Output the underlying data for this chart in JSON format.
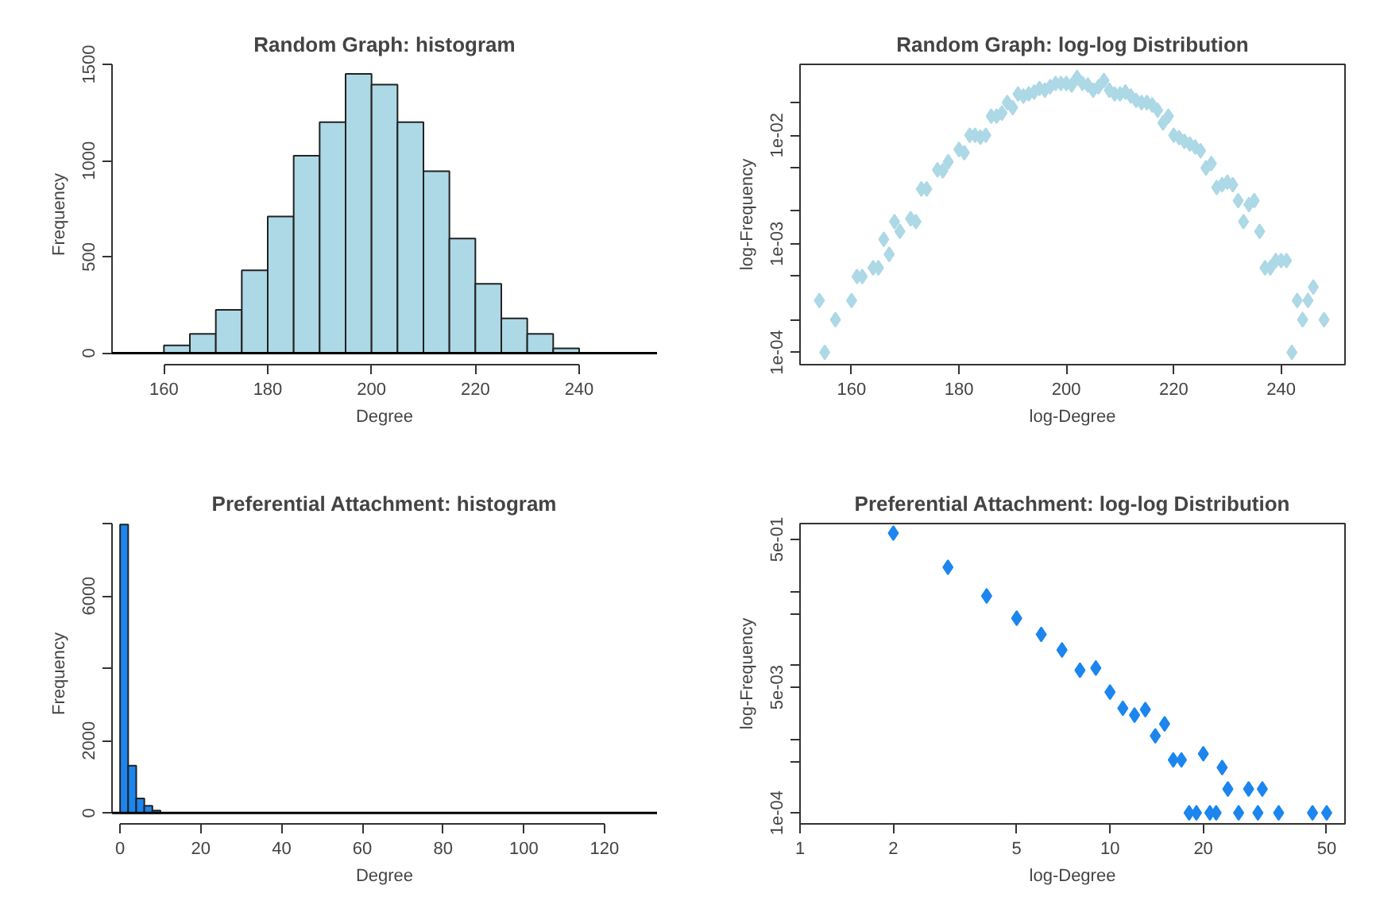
{
  "chart_data": [
    {
      "type": "histogram",
      "title": "Random Graph: histogram",
      "xlabel": "Degree",
      "ylabel": "Frequency",
      "color": "#add8e6",
      "bins": [
        160,
        165,
        170,
        175,
        180,
        185,
        190,
        195,
        200,
        205,
        210,
        215,
        220,
        225,
        230,
        235,
        240
      ],
      "values": [
        40,
        100,
        225,
        430,
        710,
        1025,
        1200,
        1450,
        1395,
        1200,
        945,
        595,
        360,
        180,
        100,
        25
      ],
      "xlim": [
        150,
        255
      ],
      "ylim": [
        -60,
        1500
      ],
      "xticks": [
        160,
        180,
        200,
        220,
        240
      ],
      "yticks": [
        0,
        500,
        1000,
        1500
      ],
      "ref_lines": [
        {
          "axis": "y",
          "value": 0,
          "color": "#000000"
        }
      ],
      "grid": false
    },
    {
      "type": "scatter",
      "title": "Random Graph: log-log Distribution",
      "xlabel": "log-Degree",
      "ylabel": "log-Frequency",
      "color": "#add8e6",
      "marker": "diamond",
      "log": "y",
      "x": [
        154,
        155,
        157,
        160,
        161,
        162,
        164,
        165,
        166,
        167,
        168,
        169,
        171,
        172,
        173,
        174,
        176,
        177,
        178,
        180,
        181,
        182,
        183,
        184,
        185,
        186,
        187,
        188,
        189,
        190,
        191,
        192,
        193,
        194,
        195,
        196,
        197,
        198,
        199,
        200,
        201,
        202,
        203,
        204,
        205,
        206,
        207,
        208,
        209,
        210,
        211,
        212,
        213,
        214,
        215,
        216,
        217,
        218,
        219,
        220,
        221,
        222,
        223,
        224,
        225,
        226,
        227,
        228,
        229,
        230,
        231,
        232,
        233,
        234,
        235,
        236,
        237,
        238,
        239,
        240,
        241,
        242,
        243,
        244,
        245,
        246,
        248
      ],
      "values": [
        0.0003,
        0.0001,
        0.0002,
        0.0003,
        0.0005,
        0.0005,
        0.0006,
        0.0006,
        0.0011,
        0.0008,
        0.0016,
        0.0013,
        0.0017,
        0.0016,
        0.0032,
        0.0032,
        0.0048,
        0.0047,
        0.0057,
        0.0074,
        0.0069,
        0.01,
        0.01,
        0.0096,
        0.01,
        0.015,
        0.015,
        0.016,
        0.02,
        0.018,
        0.024,
        0.023,
        0.024,
        0.025,
        0.027,
        0.026,
        0.028,
        0.03,
        0.03,
        0.03,
        0.029,
        0.034,
        0.03,
        0.029,
        0.026,
        0.028,
        0.032,
        0.026,
        0.024,
        0.024,
        0.025,
        0.023,
        0.021,
        0.02,
        0.02,
        0.019,
        0.017,
        0.013,
        0.015,
        0.01,
        0.0095,
        0.0088,
        0.0083,
        0.0078,
        0.0072,
        0.005,
        0.0055,
        0.0033,
        0.0035,
        0.0037,
        0.0035,
        0.0025,
        0.0016,
        0.0023,
        0.0025,
        0.0013,
        0.0006,
        0.0006,
        0.0007,
        0.0007,
        0.0007,
        0.0001,
        0.0003,
        0.0002,
        0.0003,
        0.0004,
        0.0002
      ],
      "xlim": [
        150.4,
        251.9
      ],
      "ylim": [
        7.7e-05,
        0.045
      ],
      "xticks": [
        160,
        180,
        200,
        220,
        240
      ],
      "yticks": [
        {
          "value": 0.0001,
          "label": "1e-04"
        },
        {
          "value": 0.0002,
          "label": null
        },
        {
          "value": 0.0005,
          "label": null
        },
        {
          "value": 0.001,
          "label": "1e-03"
        },
        {
          "value": 0.002,
          "label": null
        },
        {
          "value": 0.005,
          "label": null
        },
        {
          "value": 0.01,
          "label": "1e-02"
        },
        {
          "value": 0.02,
          "label": null
        }
      ],
      "grid": false
    },
    {
      "type": "histogram",
      "title": "Preferential Attachment: histogram",
      "xlabel": "Degree",
      "ylabel": "Frequency",
      "color": "#1c86ee",
      "bins": [
        0,
        2,
        4,
        6,
        8,
        10,
        12,
        14
      ],
      "values": [
        7970,
        1310,
        400,
        200,
        70,
        null,
        null
      ],
      "xlim": [
        -2,
        133
      ],
      "ylim": [
        -300,
        8000
      ],
      "xticks": [
        0,
        20,
        40,
        60,
        80,
        100,
        120
      ],
      "yticks": [
        0,
        2000,
        {
          "value": 4000,
          "label": null
        },
        6000,
        {
          "value": 8000,
          "label": null
        }
      ],
      "ref_lines": [
        {
          "axis": "y",
          "value": 0,
          "color": "#000000"
        }
      ],
      "grid": false
    },
    {
      "type": "scatter",
      "title": "Preferential Attachment: log-log Distribution",
      "xlabel": "log-Degree",
      "ylabel": "log-Frequency",
      "color": "#1c86ee",
      "marker": "diamond",
      "log": "xy",
      "x": [
        2,
        3,
        4,
        5,
        6,
        7,
        8,
        9,
        10,
        11,
        12,
        13,
        14,
        15,
        16,
        17,
        18,
        19,
        20,
        21,
        22,
        23,
        24,
        26,
        28,
        30,
        31,
        35,
        45,
        50
      ],
      "values": [
        0.61,
        0.21,
        0.086,
        0.043,
        0.026,
        0.016,
        0.0085,
        0.0091,
        0.0043,
        0.0026,
        0.0021,
        0.0025,
        0.0011,
        0.0016,
        0.00052,
        0.00052,
        0.0001,
        0.0001,
        0.00063,
        0.0001,
        0.0001,
        0.00041,
        0.00021,
        0.0001,
        0.00021,
        0.0001,
        0.00021,
        0.0001,
        0.0001,
        0.0001
      ],
      "xlim": [
        1,
        57.3
      ],
      "ylim": [
        7.1e-05,
        0.82
      ],
      "xticks": [
        1,
        2,
        5,
        10,
        20,
        50
      ],
      "yticks": [
        {
          "value": 0.0001,
          "label": "1e-04"
        },
        {
          "value": 0.0005,
          "label": null
        },
        {
          "value": 0.001,
          "label": null
        },
        {
          "value": 0.005,
          "label": "5e-03"
        },
        {
          "value": 0.01,
          "label": null
        },
        {
          "value": 0.05,
          "label": null
        },
        {
          "value": 0.1,
          "label": null
        },
        {
          "value": 0.5,
          "label": "5e-01"
        }
      ],
      "grid": false
    }
  ]
}
